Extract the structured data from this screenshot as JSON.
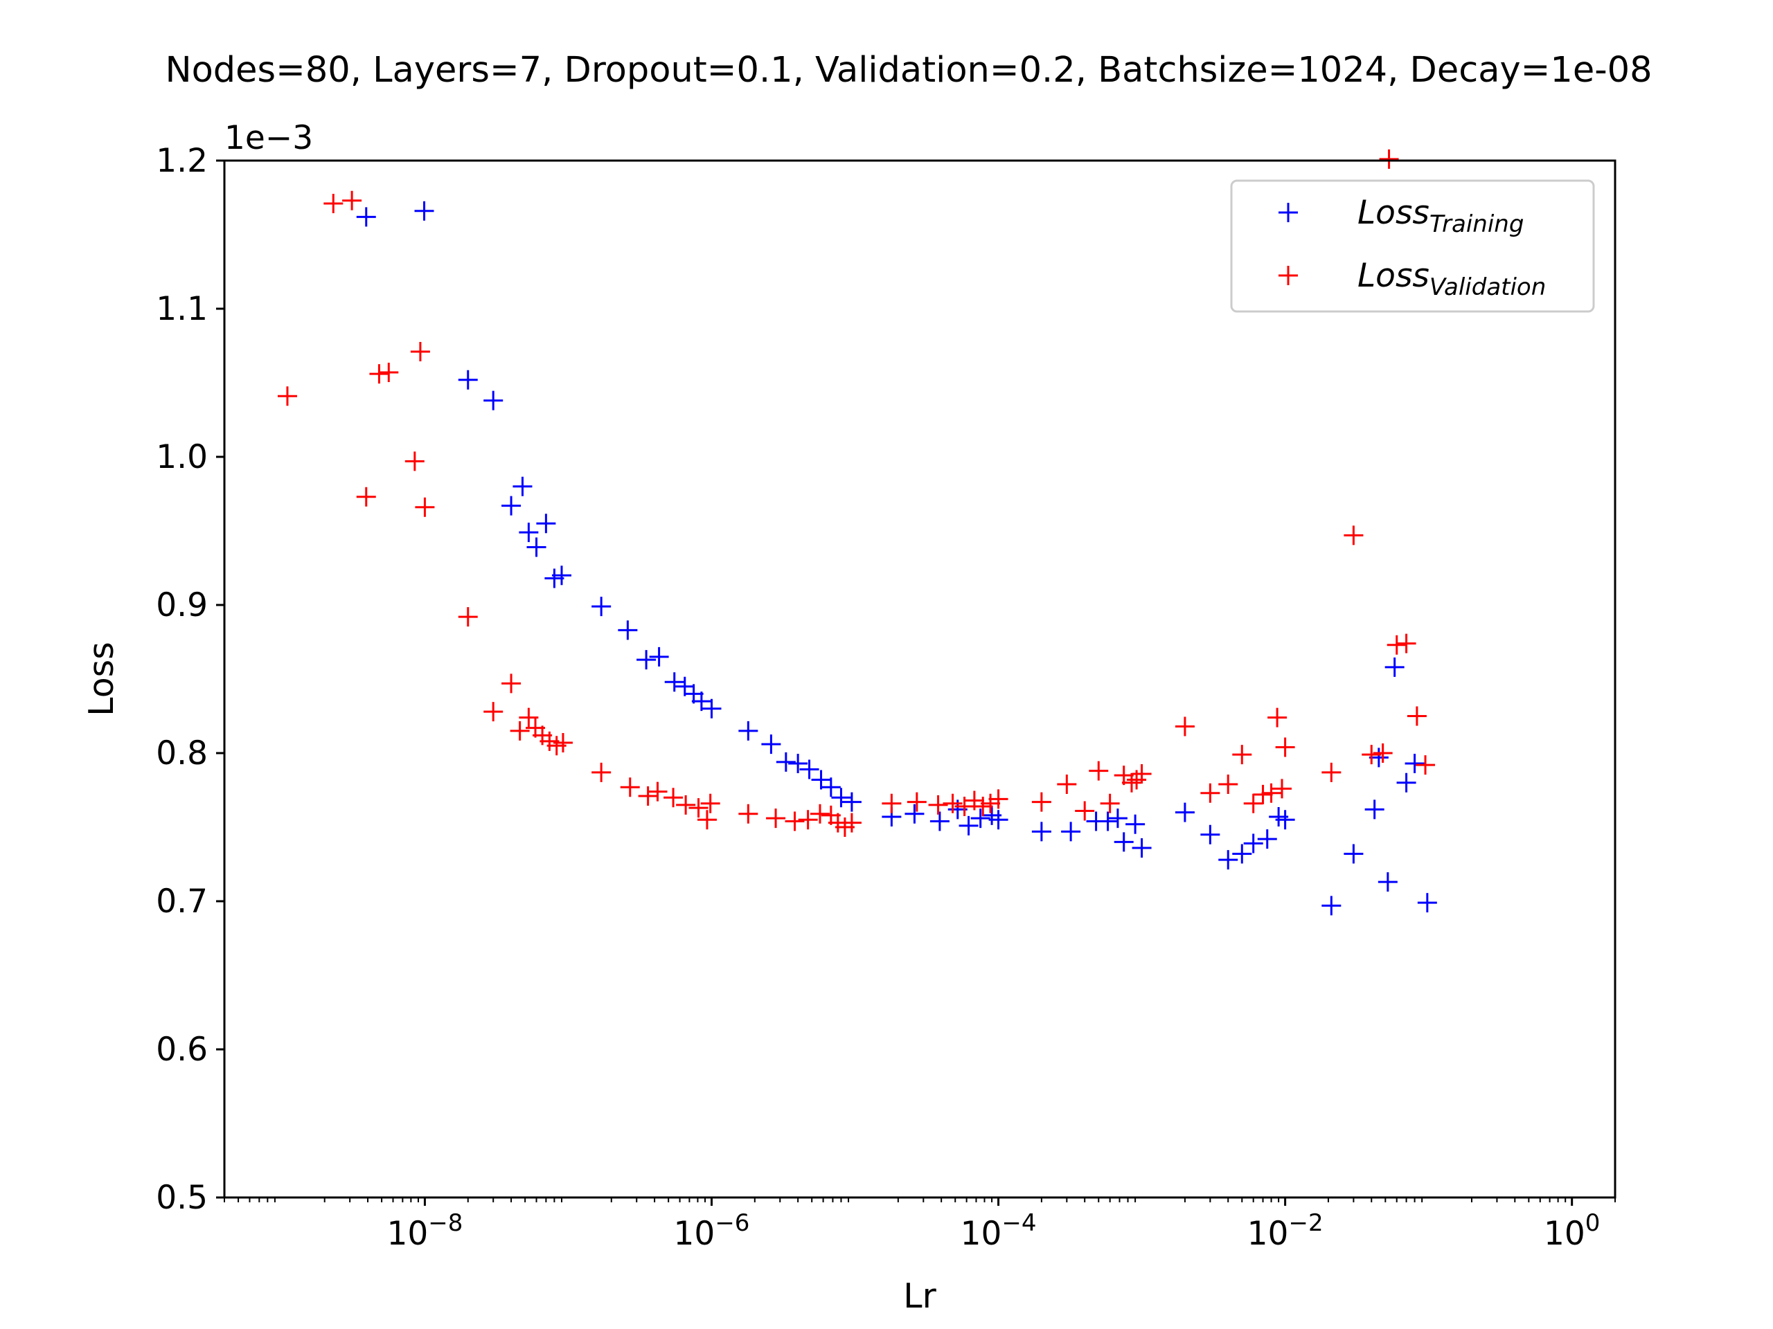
{
  "chart_data": {
    "type": "scatter",
    "title": "Nodes=80, Layers=7, Dropout=0.1, Validation=0.2, Batchsize=1024, Decay=1e-08",
    "xlabel": "Lr",
    "ylabel": "Loss",
    "x_scale": "log",
    "xlim": [
      4e-10,
      2
    ],
    "ylim": [
      0.0005,
      0.0012
    ],
    "y_offset_label": "1e−3",
    "x_ticks": [
      {
        "value": 1e-08,
        "base": "10",
        "exp": "−8"
      },
      {
        "value": 1e-06,
        "base": "10",
        "exp": "−6"
      },
      {
        "value": 0.0001,
        "base": "10",
        "exp": "−4"
      },
      {
        "value": 0.01,
        "base": "10",
        "exp": "−2"
      },
      {
        "value": 1,
        "base": "10",
        "exp": "0"
      }
    ],
    "y_ticks": [
      {
        "value": 0.0005,
        "label": "0.5"
      },
      {
        "value": 0.0006,
        "label": "0.6"
      },
      {
        "value": 0.0007,
        "label": "0.7"
      },
      {
        "value": 0.0008,
        "label": "0.8"
      },
      {
        "value": 0.0009,
        "label": "0.9"
      },
      {
        "value": 0.001,
        "label": "1.0"
      },
      {
        "value": 0.0011,
        "label": "1.1"
      },
      {
        "value": 0.0012,
        "label": "1.2"
      }
    ],
    "grid": false,
    "legend_position": "top-right",
    "series": [
      {
        "name": "Training",
        "legend_main": "Loss",
        "legend_sub": "Training",
        "color": "#0000ff",
        "marker": "plus",
        "points": [
          [
            3.9e-09,
            0.001162
          ],
          [
            9.9e-09,
            0.001166
          ],
          [
            2e-08,
            0.001052
          ],
          [
            3e-08,
            0.001038
          ],
          [
            4e-08,
            0.000967
          ],
          [
            4.8e-08,
            0.00098
          ],
          [
            5.3e-08,
            0.000949
          ],
          [
            6e-08,
            0.000939
          ],
          [
            7e-08,
            0.000955
          ],
          [
            8e-08,
            0.000918
          ],
          [
            9e-08,
            0.00092
          ],
          [
            1.7e-07,
            0.000899
          ],
          [
            2.6e-07,
            0.000883
          ],
          [
            3.5e-07,
            0.000863
          ],
          [
            4.3e-07,
            0.000865
          ],
          [
            5.5e-07,
            0.000848
          ],
          [
            6.5e-07,
            0.000845
          ],
          [
            7.5e-07,
            0.00084
          ],
          [
            8.5e-07,
            0.000835
          ],
          [
            1e-06,
            0.00083
          ],
          [
            1.8e-06,
            0.000815
          ],
          [
            2.6e-06,
            0.000806
          ],
          [
            3.3e-06,
            0.000794
          ],
          [
            4e-06,
            0.000793
          ],
          [
            4.8e-06,
            0.000789
          ],
          [
            5.8e-06,
            0.000782
          ],
          [
            6.8e-06,
            0.000777
          ],
          [
            8e-06,
            0.00077
          ],
          [
            9.5e-06,
            0.000767
          ],
          [
            1.8e-05,
            0.000757
          ],
          [
            2.6e-05,
            0.000759
          ],
          [
            3.9e-05,
            0.000754
          ],
          [
            5.2e-05,
            0.000762
          ],
          [
            6.2e-05,
            0.000751
          ],
          [
            7.5e-05,
            0.000756
          ],
          [
            9e-05,
            0.000758
          ],
          [
            0.0001,
            0.000755
          ],
          [
            0.0002,
            0.000747
          ],
          [
            0.00032,
            0.000747
          ],
          [
            0.00048,
            0.000754
          ],
          [
            0.00058,
            0.000754
          ],
          [
            0.00068,
            0.000756
          ],
          [
            0.00075,
            0.00074
          ],
          [
            0.0009,
            0.000752
          ],
          [
            0.001,
            0.000736
          ],
          [
            0.002,
            0.00076
          ],
          [
            0.003,
            0.000745
          ],
          [
            0.004,
            0.000728
          ],
          [
            0.005,
            0.000732
          ],
          [
            0.006,
            0.000739
          ],
          [
            0.0075,
            0.000742
          ],
          [
            0.009,
            0.000757
          ],
          [
            0.01,
            0.000755
          ],
          [
            0.021,
            0.000697
          ],
          [
            0.03,
            0.000732
          ],
          [
            0.042,
            0.000762
          ],
          [
            0.052,
            0.000713
          ],
          [
            0.058,
            0.000858
          ],
          [
            0.07,
            0.00078
          ],
          [
            0.08,
            0.000793
          ],
          [
            0.098,
            0.000699
          ],
          [
            0.045,
            0.000797
          ]
        ]
      },
      {
        "name": "Validation",
        "legend_main": "Loss",
        "legend_sub": "Validation",
        "color": "#ff0000",
        "marker": "plus",
        "points": [
          [
            1.1e-09,
            0.001041
          ],
          [
            2.3e-09,
            0.001171
          ],
          [
            3.1e-09,
            0.001173
          ],
          [
            3.9e-09,
            0.000973
          ],
          [
            4.8e-09,
            0.001056
          ],
          [
            5.6e-09,
            0.001057
          ],
          [
            8.5e-09,
            0.000997
          ],
          [
            9.3e-09,
            0.001071
          ],
          [
            1e-08,
            0.000966
          ],
          [
            2e-08,
            0.000892
          ],
          [
            3e-08,
            0.000828
          ],
          [
            4e-08,
            0.000847
          ],
          [
            4.6e-08,
            0.000815
          ],
          [
            5.3e-08,
            0.000824
          ],
          [
            5.9e-08,
            0.000817
          ],
          [
            6.6e-08,
            0.000812
          ],
          [
            7.4e-08,
            0.000808
          ],
          [
            8.3e-08,
            0.000805
          ],
          [
            9.2e-08,
            0.000807
          ],
          [
            1.7e-07,
            0.000787
          ],
          [
            2.7e-07,
            0.000777
          ],
          [
            3.6e-07,
            0.000771
          ],
          [
            4.2e-07,
            0.000774
          ],
          [
            5.4e-07,
            0.00077
          ],
          [
            6.6e-07,
            0.000765
          ],
          [
            8.1e-07,
            0.000763
          ],
          [
            9.3e-07,
            0.000755
          ],
          [
            9.8e-07,
            0.000766
          ],
          [
            1.8e-06,
            0.000759
          ],
          [
            2.8e-06,
            0.000756
          ],
          [
            3.8e-06,
            0.000754
          ],
          [
            4.7e-06,
            0.000755
          ],
          [
            5.7e-06,
            0.000759
          ],
          [
            6.8e-06,
            0.000758
          ],
          [
            7.6e-06,
            0.000753
          ],
          [
            8.5e-06,
            0.00075
          ],
          [
            9.5e-06,
            0.000753
          ],
          [
            1.8e-05,
            0.000766
          ],
          [
            2.7e-05,
            0.000767
          ],
          [
            3.8e-05,
            0.000765
          ],
          [
            4.8e-05,
            0.000766
          ],
          [
            5.8e-05,
            0.000764
          ],
          [
            6.8e-05,
            0.000768
          ],
          [
            7.8e-05,
            0.000764
          ],
          [
            8.8e-05,
            0.000766
          ],
          [
            0.0001,
            0.000769
          ],
          [
            0.0002,
            0.000767
          ],
          [
            0.0003,
            0.000779
          ],
          [
            0.0004,
            0.000761
          ],
          [
            0.0005,
            0.000788
          ],
          [
            0.0006,
            0.000766
          ],
          [
            0.00075,
            0.000785
          ],
          [
            0.00085,
            0.00078
          ],
          [
            0.00092,
            0.000782
          ],
          [
            0.001,
            0.000786
          ],
          [
            0.002,
            0.000818
          ],
          [
            0.003,
            0.000773
          ],
          [
            0.004,
            0.000779
          ],
          [
            0.005,
            0.000799
          ],
          [
            0.006,
            0.000766
          ],
          [
            0.007,
            0.000772
          ],
          [
            0.008,
            0.000773
          ],
          [
            0.0088,
            0.000824
          ],
          [
            0.0095,
            0.000776
          ],
          [
            0.01,
            0.000804
          ],
          [
            0.021,
            0.000787
          ],
          [
            0.03,
            0.000947
          ],
          [
            0.04,
            0.000799
          ],
          [
            0.048,
            0.0008
          ],
          [
            0.053,
            0.001201
          ],
          [
            0.06,
            0.000873
          ],
          [
            0.07,
            0.000874
          ],
          [
            0.083,
            0.000825
          ],
          [
            0.095,
            0.000792
          ]
        ]
      }
    ]
  }
}
